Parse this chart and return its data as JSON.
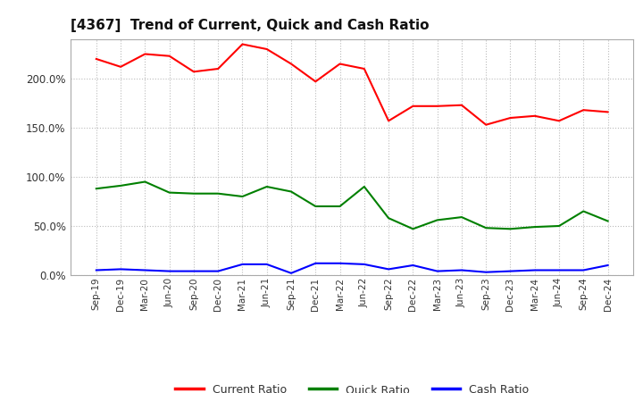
{
  "title": "[4367]  Trend of Current, Quick and Cash Ratio",
  "labels": [
    "Sep-19",
    "Dec-19",
    "Mar-20",
    "Jun-20",
    "Sep-20",
    "Dec-20",
    "Mar-21",
    "Jun-21",
    "Sep-21",
    "Dec-21",
    "Mar-22",
    "Jun-22",
    "Sep-22",
    "Dec-22",
    "Mar-23",
    "Jun-23",
    "Sep-23",
    "Dec-23",
    "Mar-24",
    "Jun-24",
    "Sep-24",
    "Dec-24"
  ],
  "current_ratio": [
    220,
    212,
    225,
    223,
    207,
    210,
    235,
    230,
    215,
    197,
    215,
    210,
    157,
    172,
    172,
    173,
    153,
    160,
    162,
    157,
    168,
    166
  ],
  "quick_ratio": [
    88,
    91,
    95,
    84,
    83,
    83,
    80,
    90,
    85,
    70,
    70,
    90,
    58,
    47,
    56,
    59,
    48,
    47,
    49,
    50,
    65,
    55
  ],
  "cash_ratio": [
    5,
    6,
    5,
    4,
    4,
    4,
    11,
    11,
    2,
    12,
    12,
    11,
    6,
    10,
    4,
    5,
    3,
    4,
    5,
    5,
    5,
    10
  ],
  "current_color": "#ff0000",
  "quick_color": "#008000",
  "cash_color": "#0000ff",
  "bg_color": "#ffffff",
  "plot_bg_color": "#ffffff",
  "grid_color": "#bbbbbb",
  "ylim": [
    0,
    240
  ],
  "yticks": [
    0,
    50,
    100,
    150,
    200
  ],
  "ytick_labels": [
    "0.0%",
    "50.0%",
    "100.0%",
    "150.0%",
    "200.0%"
  ]
}
